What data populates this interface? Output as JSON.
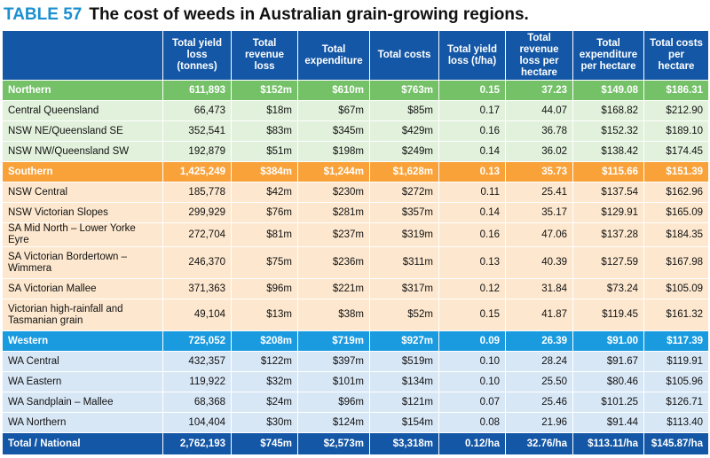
{
  "table": {
    "number": "TABLE 57",
    "title": "The cost of weeds in Australian grain-growing regions.",
    "headers": [
      "",
      "Total yield loss (tonnes)",
      "Total revenue loss",
      "Total expenditure",
      "Total costs",
      "Total yield loss (t/ha)",
      "Total revenue loss per hectare",
      "Total expenditure per hectare",
      "Total costs per hectare"
    ],
    "rows": [
      {
        "type": "north",
        "cells": [
          "Northern",
          "611,893",
          "$152m",
          "$610m",
          "$763m",
          "0.15",
          "37.23",
          "$149.08",
          "$186.31"
        ]
      },
      {
        "type": "north-sub",
        "cells": [
          "Central Queensland",
          "66,473",
          "$18m",
          "$67m",
          "$85m",
          "0.17",
          "44.07",
          "$168.82",
          "$212.90"
        ]
      },
      {
        "type": "north-sub",
        "cells": [
          "NSW NE/Queensland SE",
          "352,541",
          "$83m",
          "$345m",
          "$429m",
          "0.16",
          "36.78",
          "$152.32",
          "$189.10"
        ]
      },
      {
        "type": "north-sub",
        "cells": [
          "NSW NW/Queensland SW",
          "192,879",
          "$51m",
          "$198m",
          "$249m",
          "0.14",
          "36.02",
          "$138.42",
          "$174.45"
        ]
      },
      {
        "type": "south",
        "cells": [
          "Southern",
          "1,425,249",
          "$384m",
          "$1,244m",
          "$1,628m",
          "0.13",
          "35.73",
          "$115.66",
          "$151.39"
        ]
      },
      {
        "type": "south-sub",
        "cells": [
          "NSW Central",
          "185,778",
          "$42m",
          "$230m",
          "$272m",
          "0.11",
          "25.41",
          "$137.54",
          "$162.96"
        ]
      },
      {
        "type": "south-sub",
        "cells": [
          "NSW Victorian Slopes",
          "299,929",
          "$76m",
          "$281m",
          "$357m",
          "0.14",
          "35.17",
          "$129.91",
          "$165.09"
        ]
      },
      {
        "type": "south-sub",
        "cells": [
          "SA Mid North – Lower Yorke Eyre",
          "272,704",
          "$81m",
          "$237m",
          "$319m",
          "0.16",
          "47.06",
          "$137.28",
          "$184.35"
        ]
      },
      {
        "type": "south-sub",
        "tall": true,
        "cells": [
          "SA Victorian Bordertown – Wimmera",
          "246,370",
          "$75m",
          "$236m",
          "$311m",
          "0.13",
          "40.39",
          "$127.59",
          "$167.98"
        ]
      },
      {
        "type": "south-sub",
        "cells": [
          "SA Victorian Mallee",
          "371,363",
          "$96m",
          "$221m",
          "$317m",
          "0.12",
          "31.84",
          "$73.24",
          "$105.09"
        ]
      },
      {
        "type": "south-sub",
        "tall": true,
        "cells": [
          "Victorian high-rainfall and Tasmanian grain",
          "49,104",
          "$13m",
          "$38m",
          "$52m",
          "0.15",
          "41.87",
          "$119.45",
          "$161.32"
        ]
      },
      {
        "type": "west",
        "cells": [
          "Western",
          "725,052",
          "$208m",
          "$719m",
          "$927m",
          "0.09",
          "26.39",
          "$91.00",
          "$117.39"
        ]
      },
      {
        "type": "west-sub",
        "cells": [
          "WA Central",
          "432,357",
          "$122m",
          "$397m",
          "$519m",
          "0.10",
          "28.24",
          "$91.67",
          "$119.91"
        ]
      },
      {
        "type": "west-sub",
        "cells": [
          "WA Eastern",
          "119,922",
          "$32m",
          "$101m",
          "$134m",
          "0.10",
          "25.50",
          "$80.46",
          "$105.96"
        ]
      },
      {
        "type": "west-sub",
        "cells": [
          "WA Sandplain – Mallee",
          "68,368",
          "$24m",
          "$96m",
          "$121m",
          "0.07",
          "25.46",
          "$101.25",
          "$126.71"
        ]
      },
      {
        "type": "west-sub",
        "cells": [
          "WA Northern",
          "104,404",
          "$30m",
          "$124m",
          "$154m",
          "0.08",
          "21.96",
          "$91.44",
          "$113.40"
        ]
      },
      {
        "type": "total",
        "cells": [
          "Total / National",
          "2,762,193",
          "$745m",
          "$2,573m",
          "$3,318m",
          "0.12/ha",
          "32.76/ha",
          "$113.11/ha",
          "$145.87/ha"
        ]
      }
    ]
  }
}
